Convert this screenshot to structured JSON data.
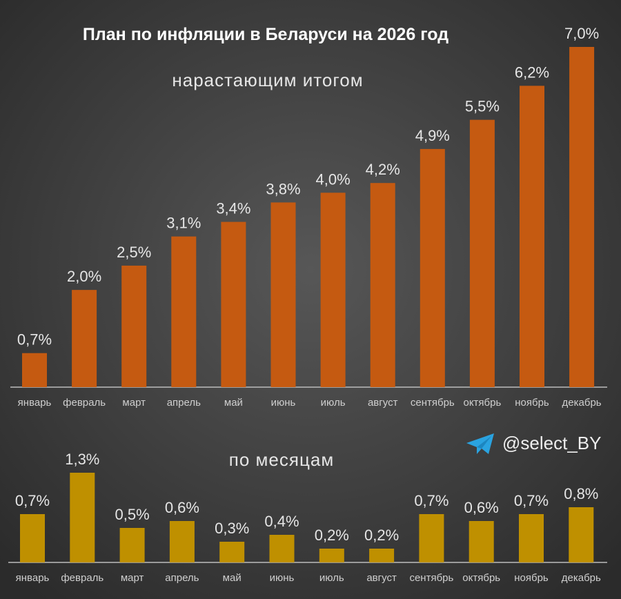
{
  "title": "План по инфляции в Беларуси на 2026 год",
  "watermark": "@select_BY",
  "icons": {
    "telegram": "telegram-icon"
  },
  "colors": {
    "background": "#3e3e3e",
    "cumulative": "#C55A11",
    "monthly": "#BF9000",
    "text": "#e6e6e6"
  },
  "chart_data": [
    {
      "type": "bar",
      "subtitle": "нарастающим итогом",
      "categories": [
        "январь",
        "февраль",
        "март",
        "апрель",
        "май",
        "июнь",
        "июль",
        "август",
        "сентябрь",
        "октябрь",
        "ноябрь",
        "декабрь"
      ],
      "values": [
        0.7,
        2.0,
        2.5,
        3.1,
        3.4,
        3.8,
        4.0,
        4.2,
        4.9,
        5.5,
        6.2,
        7.0
      ],
      "data_labels": [
        "0,7%",
        "2,0%",
        "2,5%",
        "3,1%",
        "3,4%",
        "3,8%",
        "4,0%",
        "4,2%",
        "4,9%",
        "5,5%",
        "6,2%",
        "7,0%"
      ],
      "ylim": [
        0,
        7.0
      ],
      "grid": false
    },
    {
      "type": "bar",
      "subtitle": "по месяцам",
      "categories": [
        "январь",
        "февраль",
        "март",
        "апрель",
        "май",
        "июнь",
        "июль",
        "август",
        "сентябрь",
        "октябрь",
        "ноябрь",
        "декабрь"
      ],
      "values": [
        0.7,
        1.3,
        0.5,
        0.6,
        0.3,
        0.4,
        0.2,
        0.2,
        0.7,
        0.6,
        0.7,
        0.8
      ],
      "data_labels": [
        "0,7%",
        "1,3%",
        "0,5%",
        "0,6%",
        "0,3%",
        "0,4%",
        "0,2%",
        "0,2%",
        "0,7%",
        "0,6%",
        "0,7%",
        "0,8%"
      ],
      "ylim": [
        0,
        1.3
      ],
      "grid": false
    }
  ]
}
